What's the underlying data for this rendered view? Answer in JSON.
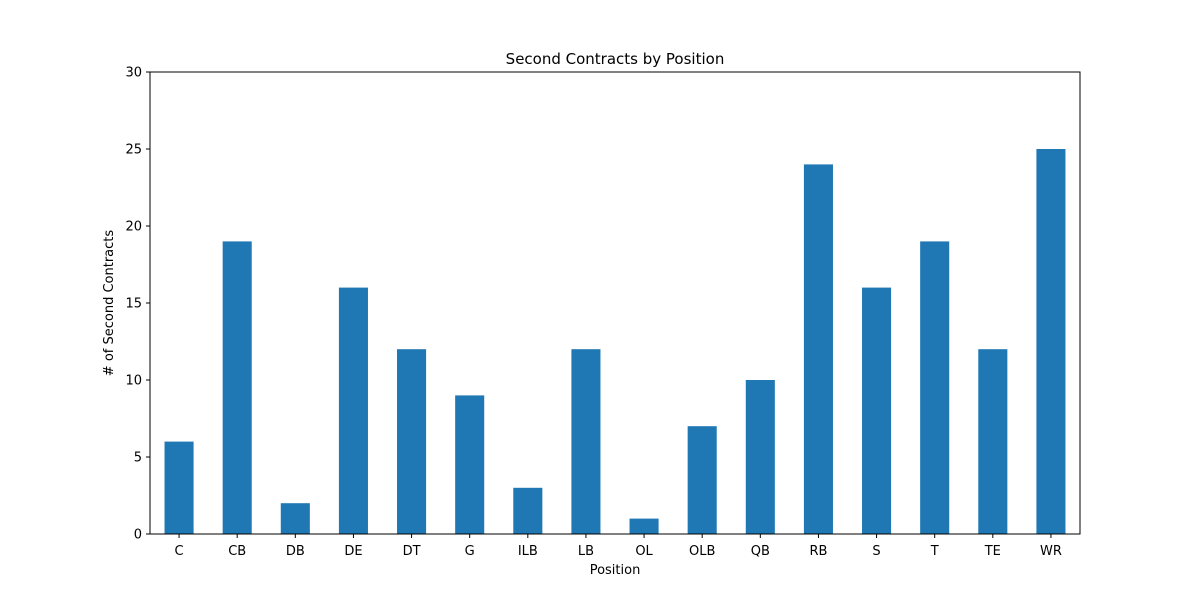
{
  "chart_data": {
    "type": "bar",
    "title": "Second Contracts by Position",
    "xlabel": "Position",
    "ylabel": "# of Second Contracts",
    "categories": [
      "C",
      "CB",
      "DB",
      "DE",
      "DT",
      "G",
      "ILB",
      "LB",
      "OL",
      "OLB",
      "QB",
      "RB",
      "S",
      "T",
      "TE",
      "WR"
    ],
    "values": [
      6,
      19,
      2,
      16,
      12,
      9,
      3,
      12,
      1,
      7,
      10,
      24,
      16,
      19,
      12,
      25
    ],
    "ylim": [
      0,
      30
    ],
    "yticks": [
      0,
      5,
      10,
      15,
      20,
      25,
      30
    ],
    "grid": false,
    "legend": "none",
    "bar_color": "#1f77b4"
  }
}
